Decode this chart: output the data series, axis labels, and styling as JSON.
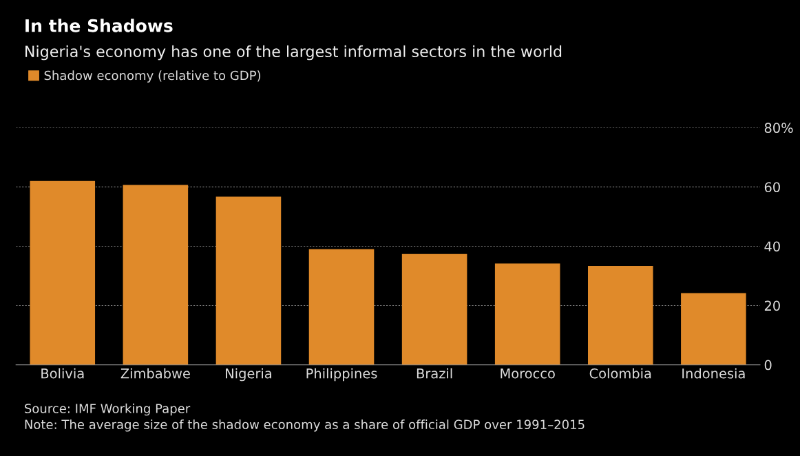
{
  "chart_data": {
    "type": "bar",
    "title": "In the Shadows",
    "subtitle": "Nigeria's economy has one of the largest informal sectors in the world",
    "categories": [
      "Bolivia",
      "Zimbabwe",
      "Nigeria",
      "Philippines",
      "Brazil",
      "Morocco",
      "Colombia",
      "Indonesia"
    ],
    "series": [
      {
        "name": "Shadow economy (relative to GDP)",
        "color": "#e08a2a",
        "values": [
          62,
          60.7,
          56.7,
          39,
          37.4,
          34.2,
          33.4,
          24.2
        ]
      }
    ],
    "ylim": [
      0,
      80
    ],
    "yticks": [
      0,
      20,
      40,
      60,
      {
        "value": 80,
        "label": "80%"
      }
    ],
    "grid": "y",
    "legend": "top left",
    "annotations": [
      "Source: IMF Working Paper",
      "Note: The average size of the shadow economy as a share of official GDP over 1991–2015"
    ]
  }
}
